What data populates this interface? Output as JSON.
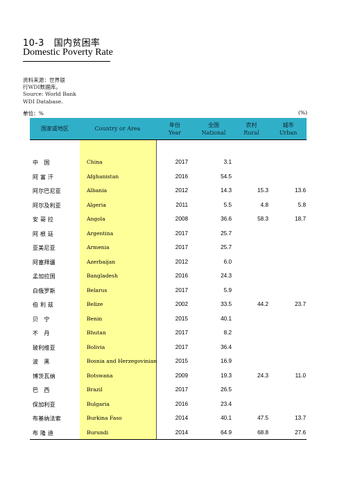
{
  "title": {
    "number": "10-3",
    "cn": "国内贫困率",
    "en": "Domestic Poverty Rate"
  },
  "source": {
    "cn_line1": "资料来源：世界银",
    "cn_line2": "行WDI数据库。",
    "en_line1": "Source: World Bank",
    "en_line2": "WDI Database."
  },
  "unit": {
    "left": "单位：%",
    "right": "(%)"
  },
  "header": {
    "col1": "国家或地区",
    "col2": "Country or Area",
    "col3_cn": "年份",
    "col3_en": "Year",
    "col4_cn": "全国",
    "col4_en": "National",
    "col5_cn": "农村",
    "col5_en": "Rural",
    "col6_cn": "城市",
    "col6_en": "Urban"
  },
  "rows": [
    {
      "cn": "中　国",
      "en": "China",
      "year": "2017",
      "national": "3.1",
      "rural": "",
      "urban": ""
    },
    {
      "cn": "阿 富 汗",
      "en": "Afghanistan",
      "year": "2016",
      "national": "54.5",
      "rural": "",
      "urban": ""
    },
    {
      "cn": "阿尔巴尼亚",
      "en": "Albania",
      "year": "2012",
      "national": "14.3",
      "rural": "15.3",
      "urban": "13.6"
    },
    {
      "cn": "阿尔及利亚",
      "en": "Algeria",
      "year": "2011",
      "national": "5.5",
      "rural": "4.8",
      "urban": "5.8"
    },
    {
      "cn": "安 哥 拉",
      "en": "Angola",
      "year": "2008",
      "national": "36.6",
      "rural": "58.3",
      "urban": "18.7"
    },
    {
      "cn": "阿 根 廷",
      "en": "Argentina",
      "year": "2017",
      "national": "25.7",
      "rural": "",
      "urban": ""
    },
    {
      "cn": "亚美尼亚",
      "en": "Armenia",
      "year": "2017",
      "national": "25.7",
      "rural": "",
      "urban": ""
    },
    {
      "cn": "阿塞拜疆",
      "en": "Azerbaijan",
      "year": "2012",
      "national": "6.0",
      "rural": "",
      "urban": ""
    },
    {
      "cn": "孟加拉国",
      "en": "Bangladesh",
      "year": "2016",
      "national": "24.3",
      "rural": "",
      "urban": ""
    },
    {
      "cn": "白俄罗斯",
      "en": "Belarus",
      "year": "2017",
      "national": "5.9",
      "rural": "",
      "urban": ""
    },
    {
      "cn": "伯 利 兹",
      "en": "Belize",
      "year": "2002",
      "national": "33.5",
      "rural": "44.2",
      "urban": "23.7"
    },
    {
      "cn": "贝　宁",
      "en": "Benin",
      "year": "2015",
      "national": "40.1",
      "rural": "",
      "urban": ""
    },
    {
      "cn": "不　丹",
      "en": "Bhutan",
      "year": "2017",
      "national": "8.2",
      "rural": "",
      "urban": ""
    },
    {
      "cn": "玻利维亚",
      "en": "Bolivia",
      "year": "2017",
      "national": "36.4",
      "rural": "",
      "urban": ""
    },
    {
      "cn": "波　黑",
      "en": "Bosnia and Herzegovinian",
      "year": "2015",
      "national": "16.9",
      "rural": "",
      "urban": ""
    },
    {
      "cn": "博茨瓦纳",
      "en": "Botswana",
      "year": "2009",
      "national": "19.3",
      "rural": "24.3",
      "urban": "11.0"
    },
    {
      "cn": "巴　西",
      "en": "Brazil",
      "year": "2017",
      "national": "26.5",
      "rural": "",
      "urban": ""
    },
    {
      "cn": "保加利亚",
      "en": "Bulgaria",
      "year": "2016",
      "national": "23.4",
      "rural": "",
      "urban": ""
    },
    {
      "cn": "布基纳法索",
      "en": "Burkina Faso",
      "year": "2014",
      "national": "40.1",
      "rural": "47.5",
      "urban": "13.7"
    },
    {
      "cn": "布 隆 迪",
      "en": "Burundi",
      "year": "2014",
      "national": "64.9",
      "rural": "68.8",
      "urban": "27.6"
    }
  ]
}
